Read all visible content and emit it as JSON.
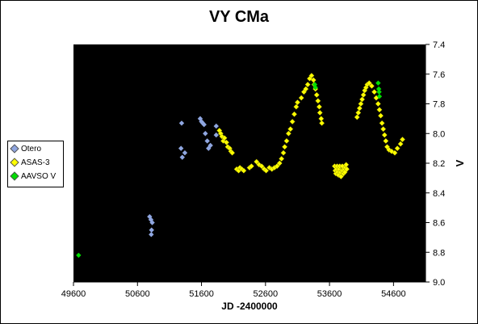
{
  "chart_data": {
    "type": "scatter",
    "title": "VY CMa",
    "xlabel": "JD -2400000",
    "ylabel": "V",
    "xlim": [
      49600,
      55100
    ],
    "ylim": [
      7.4,
      9.0
    ],
    "y_inverted": true,
    "x_ticks": [
      49600,
      50600,
      51600,
      52600,
      53600,
      54600
    ],
    "y_ticks": [
      "7.4",
      "7.6",
      "7.8",
      "8.0",
      "8.2",
      "8.4",
      "8.6",
      "8.8",
      "9.0"
    ],
    "plot_background": "#000000",
    "legend_position": "left",
    "series": [
      {
        "name": "Otero",
        "color": "#8fa6e0",
        "points": [
          [
            50790,
            8.56
          ],
          [
            50810,
            8.58
          ],
          [
            50830,
            8.6
          ],
          [
            50820,
            8.65
          ],
          [
            50815,
            8.68
          ],
          [
            51290,
            7.93
          ],
          [
            51280,
            8.1
          ],
          [
            51300,
            8.16
          ],
          [
            51340,
            8.13
          ],
          [
            51580,
            7.9
          ],
          [
            51600,
            7.92
          ],
          [
            51620,
            7.93
          ],
          [
            51640,
            7.94
          ],
          [
            51660,
            8.0
          ],
          [
            51690,
            8.05
          ],
          [
            51710,
            8.1
          ],
          [
            51740,
            8.08
          ],
          [
            51830,
            7.95
          ],
          [
            51830,
            8.01
          ]
        ]
      },
      {
        "name": "ASAS-3",
        "color": "#ffff00",
        "points": [
          [
            51880,
            7.98
          ],
          [
            51900,
            8.0
          ],
          [
            51920,
            8.02
          ],
          [
            51940,
            8.05
          ],
          [
            51960,
            8.03
          ],
          [
            51990,
            8.06
          ],
          [
            52010,
            8.09
          ],
          [
            52040,
            8.1
          ],
          [
            52060,
            8.12
          ],
          [
            52080,
            8.13
          ],
          [
            52150,
            8.24
          ],
          [
            52180,
            8.25
          ],
          [
            52200,
            8.23
          ],
          [
            52230,
            8.24
          ],
          [
            52260,
            8.25
          ],
          [
            52350,
            8.23
          ],
          [
            52380,
            8.22
          ],
          [
            52460,
            8.19
          ],
          [
            52500,
            8.21
          ],
          [
            52540,
            8.22
          ],
          [
            52580,
            8.24
          ],
          [
            52610,
            8.25
          ],
          [
            52660,
            8.23
          ],
          [
            52700,
            8.24
          ],
          [
            52740,
            8.23
          ],
          [
            52780,
            8.22
          ],
          [
            52820,
            8.2
          ],
          [
            52850,
            8.17
          ],
          [
            52880,
            8.13
          ],
          [
            52900,
            8.09
          ],
          [
            52930,
            8.05
          ],
          [
            52960,
            8.0
          ],
          [
            52990,
            7.97
          ],
          [
            53020,
            7.92
          ],
          [
            53050,
            7.87
          ],
          [
            53080,
            7.82
          ],
          [
            53100,
            7.79
          ],
          [
            53160,
            7.76
          ],
          [
            53200,
            7.72
          ],
          [
            53230,
            7.7
          ],
          [
            53260,
            7.67
          ],
          [
            53290,
            7.63
          ],
          [
            53320,
            7.61
          ],
          [
            53350,
            7.64
          ],
          [
            53360,
            7.67
          ],
          [
            53380,
            7.7
          ],
          [
            53400,
            7.74
          ],
          [
            53420,
            7.78
          ],
          [
            53440,
            7.82
          ],
          [
            53450,
            7.86
          ],
          [
            53470,
            7.9
          ],
          [
            53480,
            7.93
          ],
          [
            53680,
            8.22
          ],
          [
            53690,
            8.25
          ],
          [
            53700,
            8.27
          ],
          [
            53710,
            8.24
          ],
          [
            53720,
            8.22
          ],
          [
            53730,
            8.26
          ],
          [
            53740,
            8.28
          ],
          [
            53750,
            8.24
          ],
          [
            53760,
            8.22
          ],
          [
            53770,
            8.26
          ],
          [
            53780,
            8.29
          ],
          [
            53790,
            8.25
          ],
          [
            53800,
            8.22
          ],
          [
            53810,
            8.25
          ],
          [
            53820,
            8.27
          ],
          [
            53830,
            8.24
          ],
          [
            53840,
            8.26
          ],
          [
            53850,
            8.23
          ],
          [
            53860,
            8.21
          ],
          [
            53870,
            8.24
          ],
          [
            54030,
            7.89
          ],
          [
            54050,
            7.86
          ],
          [
            54070,
            7.83
          ],
          [
            54090,
            7.8
          ],
          [
            54110,
            7.77
          ],
          [
            54130,
            7.74
          ],
          [
            54150,
            7.71
          ],
          [
            54170,
            7.69
          ],
          [
            54190,
            7.67
          ],
          [
            54220,
            7.66
          ],
          [
            54260,
            7.68
          ],
          [
            54300,
            7.72
          ],
          [
            54330,
            7.76
          ],
          [
            54360,
            7.8
          ],
          [
            54380,
            7.84
          ],
          [
            54400,
            7.88
          ],
          [
            54420,
            7.93
          ],
          [
            54440,
            7.97
          ],
          [
            54460,
            8.01
          ],
          [
            54480,
            8.05
          ],
          [
            54500,
            8.09
          ],
          [
            54530,
            8.11
          ],
          [
            54570,
            8.12
          ],
          [
            54620,
            8.13
          ],
          [
            54660,
            8.1
          ],
          [
            54710,
            8.07
          ],
          [
            54740,
            8.04
          ]
        ]
      },
      {
        "name": "AAVSO V",
        "color": "#00dd00",
        "points": [
          [
            49680,
            8.82
          ],
          [
            53370,
            7.67
          ],
          [
            53380,
            7.69
          ],
          [
            54360,
            7.66
          ],
          [
            54370,
            7.7
          ],
          [
            54375,
            7.72
          ],
          [
            54380,
            7.75
          ]
        ]
      }
    ]
  }
}
